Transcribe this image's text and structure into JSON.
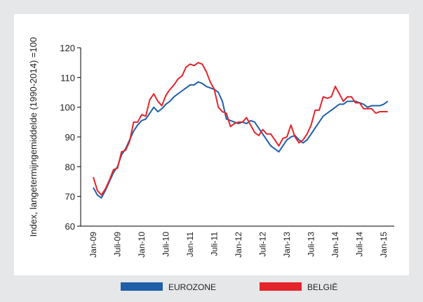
{
  "chart_data": {
    "type": "line",
    "y_label": "Index, langetermijngemiddelde (1990-2014) =100",
    "categories": [
      "Jan-09",
      null,
      null,
      null,
      null,
      null,
      "Juli-09",
      null,
      null,
      null,
      null,
      null,
      "Jan-10",
      null,
      null,
      null,
      null,
      null,
      "Juli-10",
      null,
      null,
      null,
      null,
      null,
      "Jan-11",
      null,
      null,
      null,
      null,
      null,
      "Juli-11",
      null,
      null,
      null,
      null,
      null,
      "Jan-12",
      null,
      null,
      null,
      null,
      null,
      "Juli-12",
      null,
      null,
      null,
      null,
      null,
      "Jan-13",
      null,
      null,
      null,
      null,
      null,
      "Juli-13",
      null,
      null,
      null,
      null,
      null,
      "Jan-14",
      null,
      null,
      null,
      null,
      null,
      "Juli-14",
      null,
      null,
      null,
      null,
      null,
      "Jan-15",
      null
    ],
    "series": [
      {
        "name": "EUROZONE",
        "color": "#1f5fa8",
        "values": [
          73,
          70.5,
          69.5,
          72,
          75,
          78,
          80,
          84,
          86,
          89,
          92,
          94,
          95.5,
          96,
          98,
          100,
          98.5,
          99.5,
          101,
          102,
          103.5,
          104.5,
          105.5,
          106.5,
          107.5,
          107.5,
          108.5,
          108,
          107,
          106.5,
          106,
          105,
          102,
          96,
          95.5,
          95,
          94.5,
          95,
          94.5,
          95.5,
          95,
          93,
          91,
          89,
          87,
          86,
          85,
          87,
          89,
          90,
          90.5,
          89,
          88,
          89,
          91,
          93,
          95,
          97,
          98,
          99,
          100,
          101,
          101,
          102,
          102,
          102,
          101.5,
          101,
          100,
          100.5,
          100.5,
          100.5,
          101,
          102
        ]
      },
      {
        "name": "BELGIË",
        "color": "#e3242b",
        "values": [
          76.5,
          72,
          70.5,
          72.5,
          75.5,
          79,
          79.5,
          85,
          85.5,
          88.5,
          95,
          95,
          97.5,
          97,
          102.5,
          104.5,
          102,
          100.5,
          104,
          106,
          107.5,
          109.5,
          110.5,
          113.5,
          114.5,
          114,
          115,
          114.5,
          112,
          108.5,
          106,
          100,
          98.5,
          98,
          93.5,
          94.5,
          95,
          95,
          96.5,
          94,
          91.5,
          90.5,
          92.5,
          91,
          91,
          89,
          87,
          89.5,
          90,
          94,
          90,
          88,
          89,
          91,
          94,
          99,
          99,
          103.5,
          103,
          103.5,
          107,
          104.5,
          102,
          103.5,
          103.5,
          101.5,
          101.5,
          99.5,
          99.5,
          99.5,
          98,
          98.5,
          98.5,
          98.5
        ]
      }
    ],
    "ylim": [
      60,
      120
    ],
    "yticks": [
      60,
      70,
      80,
      90,
      100,
      110,
      120
    ],
    "grid": false
  }
}
